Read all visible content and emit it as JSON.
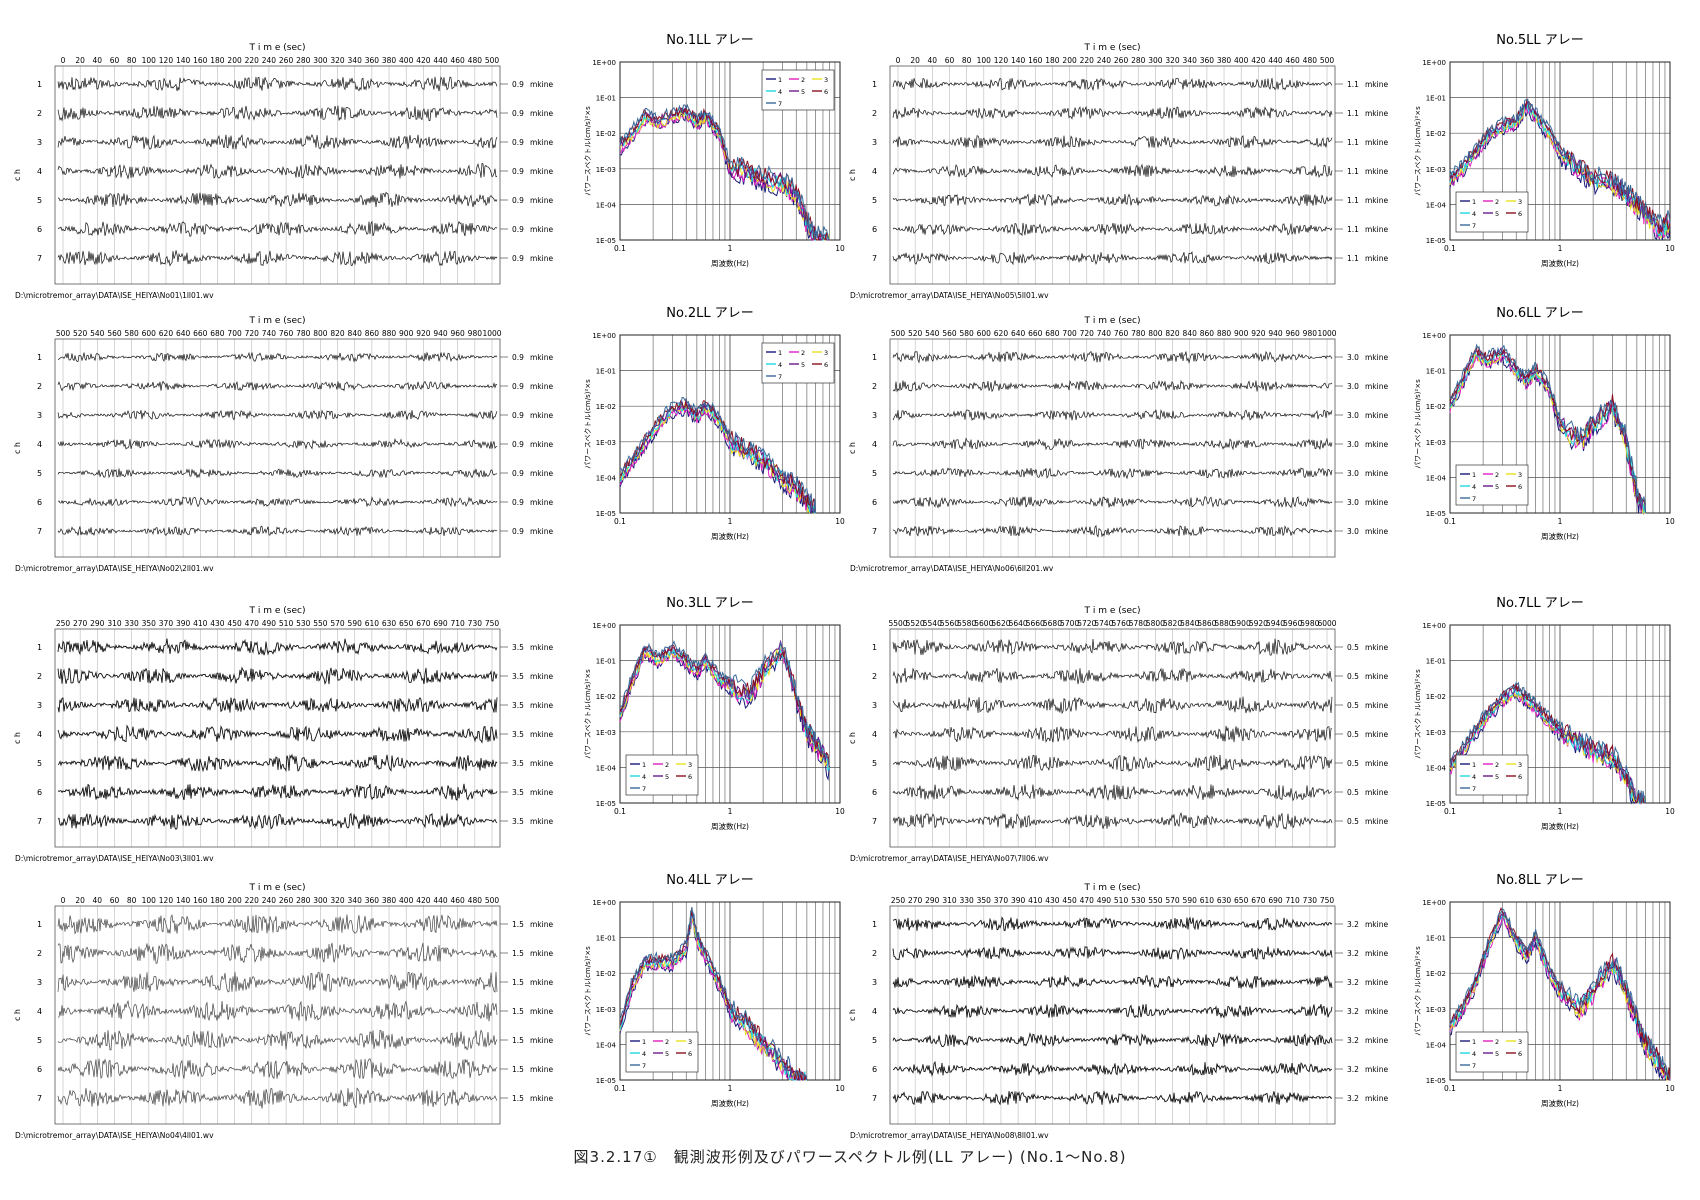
{
  "figure_caption": "図3.2.17①　観測波形例及びパワースペクトル例(LL アレー) (No.1〜No.8)",
  "waveform_common": {
    "time_label": "T i m e (sec)",
    "ch_label": "c h",
    "unit": "mkine",
    "channels": [
      "1",
      "2",
      "3",
      "4",
      "5",
      "6",
      "7"
    ]
  },
  "spectrum_common": {
    "ylabel": "パワースペクトル(cm/s)²×s",
    "xlabel": "周波数(Hz)",
    "x_ticks": [
      "0.1",
      "1",
      "10"
    ],
    "y_ticks": [
      "1E+00",
      "1E-01",
      "1E-02",
      "1E-03",
      "1E-04",
      "1E-05"
    ],
    "legend": [
      "1",
      "2",
      "3",
      "4",
      "5",
      "6",
      "7"
    ],
    "colors": [
      "#1a1a7a",
      "#e020c0",
      "#e8e020",
      "#20d8e0",
      "#6a1a8a",
      "#8a1020",
      "#3a6a9a"
    ]
  },
  "waveforms": [
    {
      "id": "No01",
      "ticks": [
        "0",
        "20",
        "40",
        "60",
        "80",
        "100",
        "120",
        "140",
        "160",
        "180",
        "200",
        "220",
        "240",
        "260",
        "280",
        "300",
        "320",
        "340",
        "360",
        "380",
        "400",
        "420",
        "440",
        "460",
        "480",
        "500"
      ],
      "scale": "0.9",
      "path": "D:\\microtremor_array\\DATA\\ISE_HEIYA\\No01\\1ll01.wv",
      "amp": 0.55,
      "seed": 3,
      "dark": false
    },
    {
      "id": "No05",
      "ticks": [
        "0",
        "20",
        "40",
        "60",
        "80",
        "100",
        "120",
        "140",
        "160",
        "180",
        "200",
        "220",
        "240",
        "260",
        "280",
        "300",
        "320",
        "340",
        "360",
        "380",
        "400",
        "420",
        "440",
        "460",
        "480",
        "500"
      ],
      "scale": "1.1",
      "path": "D:\\microtremor_array\\DATA\\ISE_HEIYA\\No05\\5ll01.wv",
      "amp": 0.45,
      "seed": 11,
      "dark": false
    },
    {
      "id": "No02",
      "ticks": [
        "500",
        "520",
        "540",
        "560",
        "580",
        "600",
        "620",
        "640",
        "660",
        "680",
        "700",
        "720",
        "740",
        "760",
        "780",
        "800",
        "820",
        "840",
        "860",
        "880",
        "900",
        "920",
        "940",
        "960",
        "980",
        "1000"
      ],
      "scale": "0.9",
      "path": "D:\\microtremor_array\\DATA\\ISE_HEIYA\\No02\\2ll01.wv",
      "amp": 0.35,
      "seed": 23,
      "dark": false
    },
    {
      "id": "No06",
      "ticks": [
        "500",
        "520",
        "540",
        "560",
        "580",
        "600",
        "620",
        "640",
        "660",
        "680",
        "700",
        "720",
        "740",
        "760",
        "780",
        "800",
        "820",
        "840",
        "860",
        "880",
        "900",
        "920",
        "940",
        "960",
        "980",
        "1000"
      ],
      "scale": "3.0",
      "path": "D:\\microtremor_array\\DATA\\ISE_HEIYA\\No06\\6ll201.wv",
      "amp": 0.4,
      "seed": 31,
      "dark": false
    },
    {
      "id": "No03",
      "ticks": [
        "250",
        "270",
        "290",
        "310",
        "330",
        "350",
        "370",
        "390",
        "410",
        "430",
        "450",
        "470",
        "490",
        "510",
        "530",
        "550",
        "570",
        "590",
        "610",
        "630",
        "650",
        "670",
        "690",
        "710",
        "730",
        "750"
      ],
      "scale": "3.5",
      "path": "D:\\microtremor_array\\DATA\\ISE_HEIYA\\No03\\3ll01.wv",
      "amp": 0.55,
      "seed": 41,
      "dark": true
    },
    {
      "id": "No07",
      "ticks": [
        "5500",
        "5520",
        "5540",
        "5560",
        "5580",
        "5600",
        "5620",
        "5640",
        "5660",
        "5680",
        "5700",
        "5720",
        "5740",
        "5760",
        "5780",
        "5800",
        "5820",
        "5840",
        "5860",
        "5880",
        "5900",
        "5920",
        "5940",
        "5960",
        "5980",
        "6000"
      ],
      "scale": "0.5",
      "path": "D:\\microtremor_array\\DATA\\ISE_HEIYA\\No07\\7ll06.wv",
      "amp": 0.6,
      "seed": 53,
      "dark": false
    },
    {
      "id": "No04",
      "ticks": [
        "0",
        "20",
        "40",
        "60",
        "80",
        "100",
        "120",
        "140",
        "160",
        "180",
        "200",
        "220",
        "240",
        "260",
        "280",
        "300",
        "320",
        "340",
        "360",
        "380",
        "400",
        "420",
        "440",
        "460",
        "480",
        "500"
      ],
      "scale": "1.5",
      "path": "D:\\microtremor_array\\DATA\\ISE_HEIYA\\No04\\4ll01.wv",
      "amp": 0.75,
      "seed": 61,
      "dark": false,
      "gray": true
    },
    {
      "id": "No08",
      "ticks": [
        "250",
        "270",
        "290",
        "310",
        "330",
        "350",
        "370",
        "390",
        "410",
        "430",
        "450",
        "470",
        "490",
        "510",
        "530",
        "550",
        "570",
        "590",
        "610",
        "630",
        "650",
        "670",
        "690",
        "710",
        "730",
        "750"
      ],
      "scale": "3.2",
      "path": "D:\\microtremor_array\\DATA\\ISE_HEIYA\\No08\\8ll01.wv",
      "amp": 0.45,
      "seed": 71,
      "dark": true
    }
  ],
  "chart_data": [
    {
      "type": "line",
      "title": "No.1LL アレー",
      "xlabel": "周波数(Hz)",
      "ylabel": "パワースペクトル(cm/s)²×s",
      "x_scale": "log",
      "y_scale": "log",
      "xlim": [
        0.1,
        10
      ],
      "ylim": [
        1e-05,
        1
      ],
      "legend_position": "top-right",
      "x": [
        0.1,
        0.13,
        0.17,
        0.22,
        0.3,
        0.4,
        0.5,
        0.6,
        0.8,
        1.0,
        1.5,
        2,
        3,
        4,
        5,
        6,
        8
      ],
      "series": [
        {
          "name": "1",
          "values": [
            0.004,
            0.01,
            0.03,
            0.02,
            0.03,
            0.04,
            0.02,
            0.03,
            0.01,
            0.001,
            0.0008,
            0.0005,
            0.0004,
            0.0002,
            3e-05,
            1e-05,
            1e-05
          ]
        }
      ]
    },
    {
      "type": "line",
      "title": "No.5LL アレー",
      "xlabel": "周波数(Hz)",
      "ylabel": "パワースペクトル(cm/s)²×s",
      "x_scale": "log",
      "y_scale": "log",
      "xlim": [
        0.1,
        10
      ],
      "ylim": [
        1e-05,
        1
      ],
      "legend_position": "bottom-left",
      "x": [
        0.1,
        0.13,
        0.17,
        0.22,
        0.3,
        0.4,
        0.5,
        0.6,
        0.8,
        1.0,
        1.5,
        2,
        3,
        4,
        5,
        6,
        8,
        10
      ],
      "series": [
        {
          "name": "1",
          "values": [
            0.0005,
            0.001,
            0.003,
            0.008,
            0.015,
            0.02,
            0.06,
            0.03,
            0.01,
            0.003,
            0.001,
            0.0005,
            0.0004,
            0.0002,
            0.0001,
            5e-05,
            2e-05,
            3e-05
          ]
        }
      ]
    },
    {
      "type": "line",
      "title": "No.2LL アレー",
      "xlabel": "周波数(Hz)",
      "ylabel": "パワースペクトル(cm/s)²×s",
      "x_scale": "log",
      "y_scale": "log",
      "xlim": [
        0.1,
        10
      ],
      "ylim": [
        1e-05,
        1
      ],
      "legend_position": "top-right",
      "x": [
        0.1,
        0.13,
        0.17,
        0.22,
        0.3,
        0.4,
        0.5,
        0.6,
        0.8,
        1.0,
        1.5,
        2,
        3,
        4,
        5,
        6
      ],
      "series": [
        {
          "name": "1",
          "values": [
            0.0001,
            0.0003,
            0.001,
            0.003,
            0.008,
            0.01,
            0.005,
            0.01,
            0.004,
            0.001,
            0.0005,
            0.0003,
            0.0001,
            5e-05,
            2e-05,
            1e-05
          ]
        }
      ]
    },
    {
      "type": "line",
      "title": "No.6LL アレー",
      "xlabel": "周波数(Hz)",
      "ylabel": "パワースペクトル(cm/s)²×s",
      "x_scale": "log",
      "y_scale": "log",
      "xlim": [
        0.1,
        10
      ],
      "ylim": [
        1e-05,
        1
      ],
      "legend_position": "bottom-left",
      "x": [
        0.1,
        0.13,
        0.17,
        0.22,
        0.3,
        0.4,
        0.5,
        0.6,
        0.8,
        1.0,
        1.5,
        2,
        3,
        4,
        5,
        6
      ],
      "series": [
        {
          "name": "1",
          "values": [
            0.01,
            0.05,
            0.3,
            0.2,
            0.3,
            0.1,
            0.05,
            0.1,
            0.03,
            0.003,
            0.001,
            0.003,
            0.01,
            0.001,
            3e-05,
            1e-05
          ]
        }
      ]
    },
    {
      "type": "line",
      "title": "No.3LL アレー",
      "xlabel": "周波数(Hz)",
      "ylabel": "パワースペクトル(cm/s)²×s",
      "x_scale": "log",
      "y_scale": "log",
      "xlim": [
        0.1,
        10
      ],
      "ylim": [
        1e-05,
        1
      ],
      "legend_position": "bottom-left",
      "x": [
        0.1,
        0.13,
        0.17,
        0.22,
        0.3,
        0.4,
        0.5,
        0.6,
        0.8,
        1.0,
        1.5,
        2,
        3,
        4,
        5,
        6,
        8
      ],
      "series": [
        {
          "name": "1",
          "values": [
            0.003,
            0.03,
            0.2,
            0.1,
            0.2,
            0.1,
            0.05,
            0.1,
            0.03,
            0.02,
            0.01,
            0.05,
            0.2,
            0.01,
            0.001,
            0.0005,
            0.0001
          ]
        }
      ]
    },
    {
      "type": "line",
      "title": "No.7LL アレー",
      "xlabel": "周波数(Hz)",
      "ylabel": "パワースペクトル(cm/s)²×s",
      "x_scale": "log",
      "y_scale": "log",
      "xlim": [
        0.1,
        10
      ],
      "ylim": [
        1e-05,
        1
      ],
      "legend_position": "bottom-left",
      "x": [
        0.1,
        0.13,
        0.17,
        0.22,
        0.3,
        0.4,
        0.5,
        0.6,
        0.8,
        1.0,
        1.5,
        2,
        3,
        4,
        5,
        6
      ],
      "series": [
        {
          "name": "1",
          "values": [
            0.0001,
            0.0003,
            0.001,
            0.003,
            0.008,
            0.015,
            0.008,
            0.005,
            0.002,
            0.001,
            0.0005,
            0.0003,
            0.0002,
            5e-05,
            1e-05,
            1e-05
          ]
        }
      ]
    },
    {
      "type": "line",
      "title": "No.4LL アレー",
      "xlabel": "周波数(Hz)",
      "ylabel": "パワースペクトル(cm/s)²×s",
      "x_scale": "log",
      "y_scale": "log",
      "xlim": [
        0.1,
        10
      ],
      "ylim": [
        1e-05,
        1
      ],
      "legend_position": "bottom-left",
      "x": [
        0.1,
        0.13,
        0.17,
        0.22,
        0.3,
        0.4,
        0.45,
        0.5,
        0.6,
        0.8,
        1.0,
        1.5,
        2,
        3,
        4,
        5
      ],
      "series": [
        {
          "name": "1",
          "values": [
            0.0003,
            0.005,
            0.02,
            0.02,
            0.02,
            0.05,
            0.5,
            0.1,
            0.03,
            0.005,
            0.001,
            0.0003,
            0.0001,
            3e-05,
            1e-05,
            1e-05
          ]
        }
      ]
    },
    {
      "type": "line",
      "title": "No.8LL アレー",
      "xlabel": "周波数(Hz)",
      "ylabel": "パワースペクトル(cm/s)²×s",
      "x_scale": "log",
      "y_scale": "log",
      "xlim": [
        0.1,
        10
      ],
      "ylim": [
        1e-05,
        1
      ],
      "legend_position": "bottom-left",
      "x": [
        0.1,
        0.13,
        0.17,
        0.22,
        0.3,
        0.4,
        0.5,
        0.6,
        0.8,
        1.0,
        1.5,
        2,
        3,
        4,
        5,
        6,
        8,
        10
      ],
      "series": [
        {
          "name": "1",
          "values": [
            0.0003,
            0.001,
            0.005,
            0.05,
            0.5,
            0.08,
            0.03,
            0.1,
            0.01,
            0.003,
            0.001,
            0.003,
            0.02,
            0.003,
            0.0005,
            0.0001,
            3e-05,
            1e-05
          ]
        }
      ]
    }
  ]
}
